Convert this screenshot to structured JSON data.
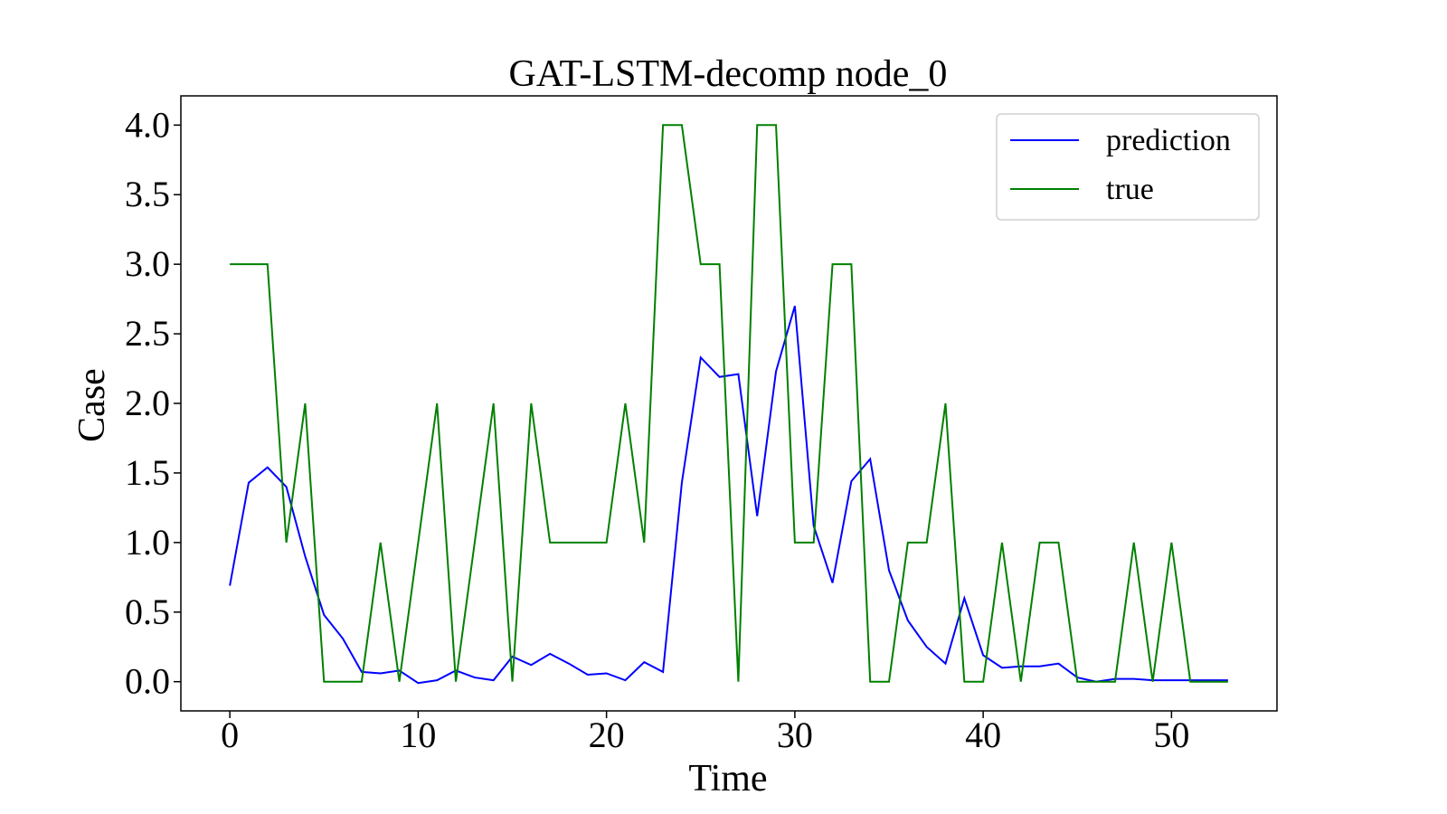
{
  "chart_data": {
    "type": "line",
    "title": "GAT-LSTM-decomp  node_0",
    "xlabel": "Time",
    "ylabel": "Case",
    "xlim": [
      -2.6,
      55.6
    ],
    "ylim": [
      -0.21,
      4.21
    ],
    "x_ticks": [
      0,
      10,
      20,
      30,
      40,
      50
    ],
    "y_ticks": [
      0.0,
      0.5,
      1.0,
      1.5,
      2.0,
      2.5,
      3.0,
      3.5,
      4.0
    ],
    "x_tick_labels": [
      "0",
      "10",
      "20",
      "30",
      "40",
      "50"
    ],
    "y_tick_labels": [
      "0.0",
      "0.5",
      "1.0",
      "1.5",
      "2.0",
      "2.5",
      "3.0",
      "3.5",
      "4.0"
    ],
    "grid": false,
    "legend_position": "top-right",
    "x": [
      0,
      1,
      2,
      3,
      4,
      5,
      6,
      7,
      8,
      9,
      10,
      11,
      12,
      13,
      14,
      15,
      16,
      17,
      18,
      19,
      20,
      21,
      22,
      23,
      24,
      25,
      26,
      27,
      28,
      29,
      30,
      31,
      32,
      33,
      34,
      35,
      36,
      37,
      38,
      39,
      40,
      41,
      42,
      43,
      44,
      45,
      46,
      47,
      48,
      49,
      50,
      51,
      52,
      53
    ],
    "series": [
      {
        "name": "prediction",
        "color": "#0000ff",
        "values": [
          0.69,
          1.43,
          1.54,
          1.4,
          0.9,
          0.48,
          0.31,
          0.07,
          0.06,
          0.08,
          -0.01,
          0.01,
          0.08,
          0.03,
          0.01,
          0.18,
          0.12,
          0.2,
          0.13,
          0.05,
          0.06,
          0.01,
          0.14,
          0.07,
          1.43,
          2.33,
          2.19,
          2.21,
          1.19,
          2.23,
          2.7,
          1.12,
          0.71,
          1.44,
          1.6,
          0.8,
          0.44,
          0.25,
          0.13,
          0.6,
          0.19,
          0.1,
          0.11,
          0.11,
          0.13,
          0.03,
          0.0,
          0.02,
          0.02,
          0.01,
          0.01,
          0.01,
          0.01,
          0.01
        ]
      },
      {
        "name": "true",
        "color": "#008000",
        "values": [
          3,
          3,
          3,
          1,
          2,
          0,
          0,
          0,
          1,
          0,
          1,
          2,
          0,
          1,
          2,
          0,
          2,
          1,
          1,
          1,
          1,
          2,
          1,
          4,
          4,
          3,
          3,
          0,
          4,
          4,
          1,
          1,
          3,
          3,
          0,
          0,
          1,
          1,
          2,
          0,
          0,
          1,
          0,
          1,
          1,
          0,
          0,
          0,
          1,
          0,
          1,
          0,
          0,
          0
        ]
      }
    ]
  }
}
